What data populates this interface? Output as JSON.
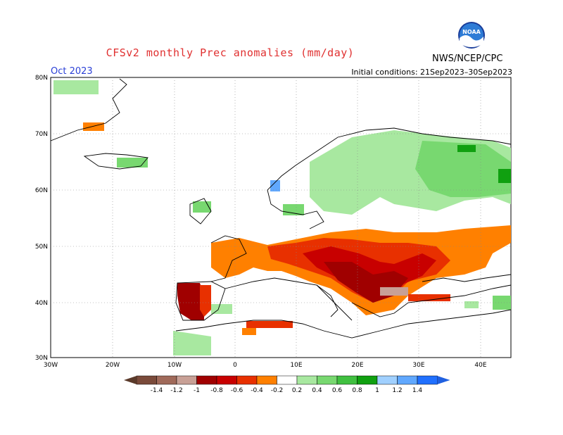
{
  "title": "CFSv2 monthly Prec anomalies (mm/day)",
  "month": "Oct 2023",
  "initial_conditions": "Initial conditions: 21Sep2023–30Sep2023",
  "agency": "NWS/NCEP/CPC",
  "logo_text": "NOAA",
  "lat_labels": [
    "80N",
    "70N",
    "60N",
    "50N",
    "40N",
    "30N"
  ],
  "lon_labels": [
    "30W",
    "20W",
    "10W",
    "0",
    "10E",
    "20E",
    "30E",
    "40E"
  ],
  "colorbar": {
    "labels": [
      "-1.4",
      "-1.2",
      "-1",
      "-0.8",
      "-0.6",
      "-0.4",
      "-0.2",
      "0.2",
      "0.4",
      "0.6",
      "0.8",
      "1",
      "1.2",
      "1.4"
    ],
    "colors": [
      "#7a4a3a",
      "#a06a5a",
      "#c8a096",
      "#a00000",
      "#c80000",
      "#e83000",
      "#ff8000",
      "#f0a000",
      "#ffffff",
      "#a8e8a0",
      "#78d870",
      "#40c040",
      "#10a010",
      "#a0d0ff",
      "#60a8ff",
      "#2070ff"
    ]
  },
  "legend_colors": {
    "strong_dry": "#a00000",
    "dry": "#e83000",
    "mild_dry": "#f0a000",
    "mild_wet": "#78d870",
    "wet": "#10a010",
    "land_outline": "#000000",
    "grid": "#888888"
  }
}
